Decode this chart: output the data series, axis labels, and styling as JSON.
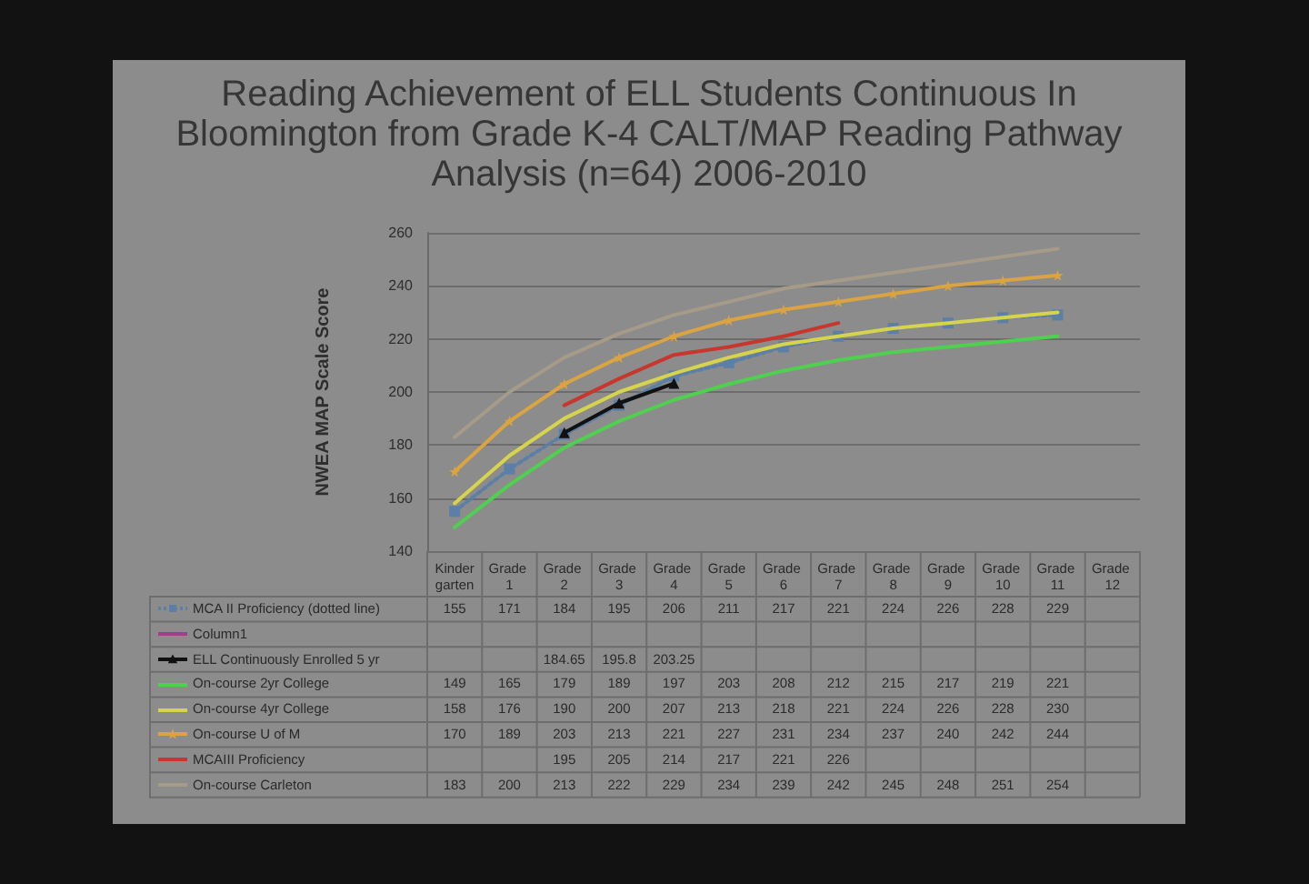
{
  "chart_data": {
    "type": "line",
    "title": "Reading Achievement of ELL Students Continuous In Bloomington from Grade K-4 CALT/MAP Reading Pathway Analysis (n=64) 2006-2010",
    "ylabel": "NWEA MAP Scale Score",
    "categories": [
      "Kindergarten",
      "Grade 1",
      "Grade 2",
      "Grade 3",
      "Grade 4",
      "Grade 5",
      "Grade 6",
      "Grade 7",
      "Grade 8",
      "Grade 9",
      "Grade 10",
      "Grade 11",
      "Grade 12"
    ],
    "ylim": [
      140,
      260
    ],
    "yticks": [
      140,
      160,
      180,
      200,
      220,
      240,
      260
    ],
    "grid": "y",
    "legend": "bottom left",
    "data_labels": true,
    "series": [
      {
        "name": "MCA II Proficiency (dotted line)",
        "color": "#5b7fa6",
        "marker": "square",
        "line_style": "dotted",
        "values": [
          155,
          171,
          184,
          195,
          206,
          211,
          217,
          221,
          224,
          226,
          228,
          229,
          null
        ]
      },
      {
        "name": "Column1",
        "color": "#a0408a",
        "values": [
          null,
          null,
          null,
          null,
          null,
          null,
          null,
          null,
          null,
          null,
          null,
          null,
          null
        ]
      },
      {
        "name": "ELL Continuously Enrolled 5 yr",
        "color": "#111111",
        "marker": "triangle",
        "values": [
          null,
          null,
          184.65,
          195.8,
          203.25,
          null,
          null,
          null,
          null,
          null,
          null,
          null,
          null
        ]
      },
      {
        "name": "On-course 2yr College",
        "color": "#4fd04f",
        "values": [
          149,
          165,
          179,
          189,
          197,
          203,
          208,
          212,
          215,
          217,
          219,
          221,
          null
        ]
      },
      {
        "name": "On-course 4yr College",
        "color": "#d6d34c",
        "values": [
          158,
          176,
          190,
          200,
          207,
          213,
          218,
          221,
          224,
          226,
          228,
          230,
          null
        ]
      },
      {
        "name": "On-course U of M",
        "color": "#d9a441",
        "marker": "star",
        "values": [
          170,
          189,
          203,
          213,
          221,
          227,
          231,
          234,
          237,
          240,
          242,
          244,
          null
        ]
      },
      {
        "name": "MCAIII Proficiency",
        "color": "#c8372d",
        "values": [
          null,
          null,
          195,
          205,
          214,
          217,
          221,
          226,
          null,
          null,
          null,
          null,
          null
        ]
      },
      {
        "name": "On-course Carleton",
        "color": "#a69b88",
        "values": [
          183,
          200,
          213,
          222,
          229,
          234,
          239,
          242,
          245,
          248,
          251,
          254,
          null
        ]
      }
    ]
  }
}
